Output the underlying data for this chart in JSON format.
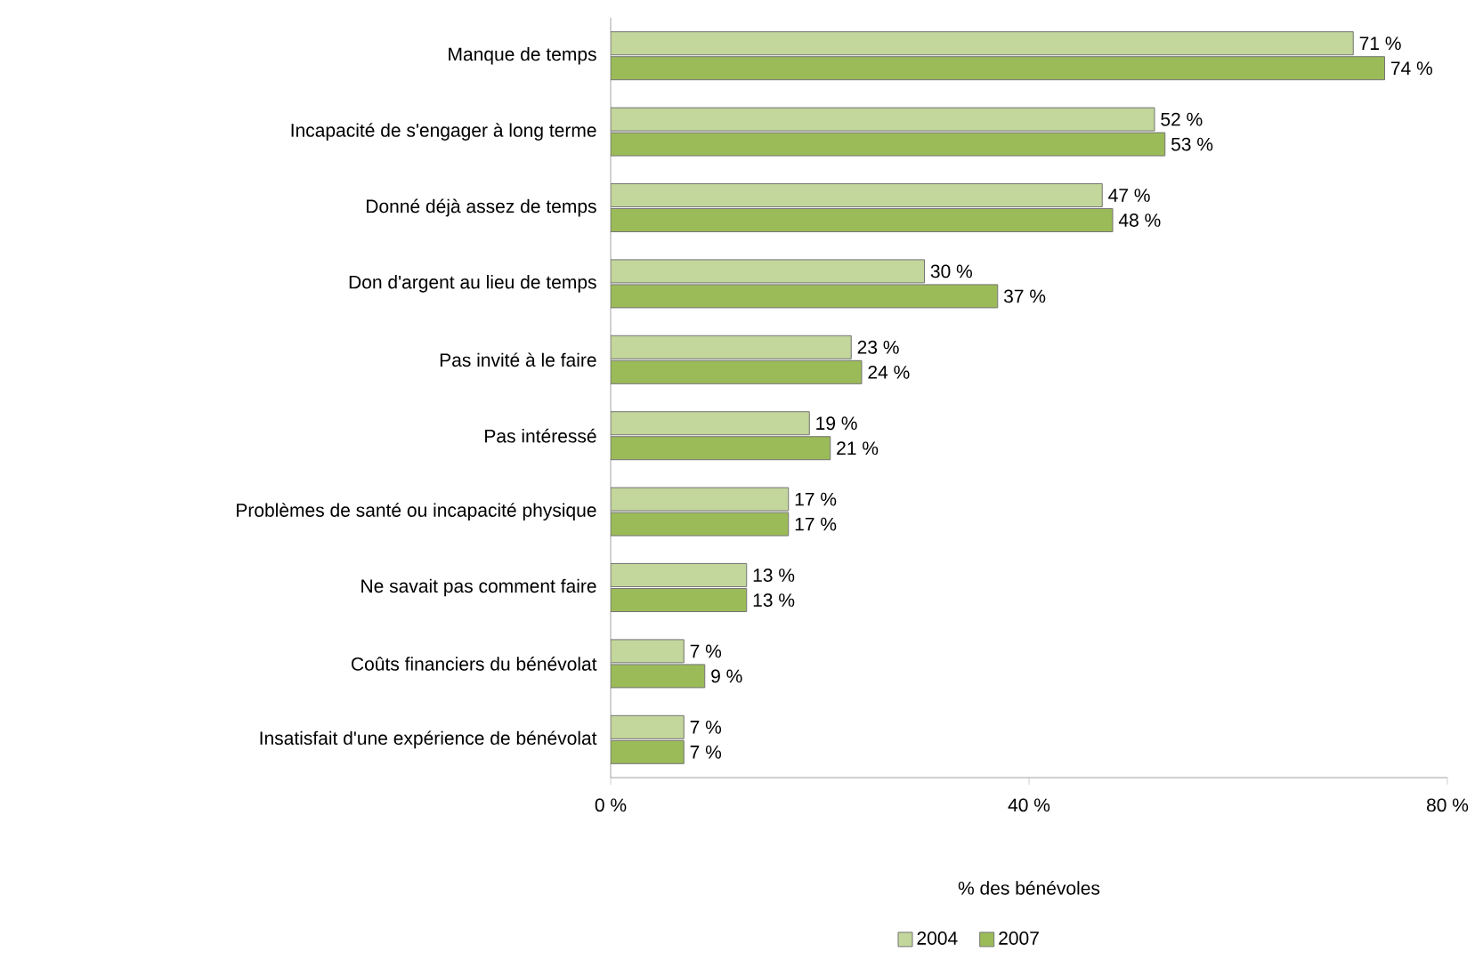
{
  "chart_data": {
    "type": "bar",
    "orientation": "horizontal",
    "xlabel": "% des bénévoles",
    "categories": [
      "Manque de temps",
      "Incapacité de s'engager à long terme",
      "Donné déjà assez de temps",
      "Don d'argent au lieu de temps",
      "Pas invité à le faire",
      "Pas intéressé",
      "Problèmes de santé ou incapacité physique",
      "Ne savait pas comment faire",
      "Coûts financiers du bénévolat",
      "Insatisfait d'une expérience de bénévolat"
    ],
    "series": [
      {
        "name": "2004",
        "color": "#c3d69b",
        "values": [
          71,
          52,
          47,
          30,
          23,
          19,
          17,
          13,
          7,
          7
        ],
        "value_labels": [
          "71 %",
          "52 %",
          "47 %",
          "30 %",
          "23 %",
          "19 %",
          "17 %",
          "13 %",
          "7 %",
          "7 %"
        ]
      },
      {
        "name": "2007",
        "color": "#9bbb59",
        "values": [
          74,
          53,
          48,
          37,
          24,
          21,
          17,
          13,
          9,
          7
        ],
        "value_labels": [
          "74 %",
          "53 %",
          "48 %",
          "37 %",
          "24 %",
          "21 %",
          "17 %",
          "13 %",
          "9 %",
          "7 %"
        ]
      }
    ],
    "xlim": [
      0,
      80
    ],
    "xticks": [
      {
        "value": 0,
        "label": "0 %"
      },
      {
        "value": 40,
        "label": "40 %"
      },
      {
        "value": 80,
        "label": "80 %"
      }
    ],
    "grid": false,
    "legend": "bottom"
  }
}
